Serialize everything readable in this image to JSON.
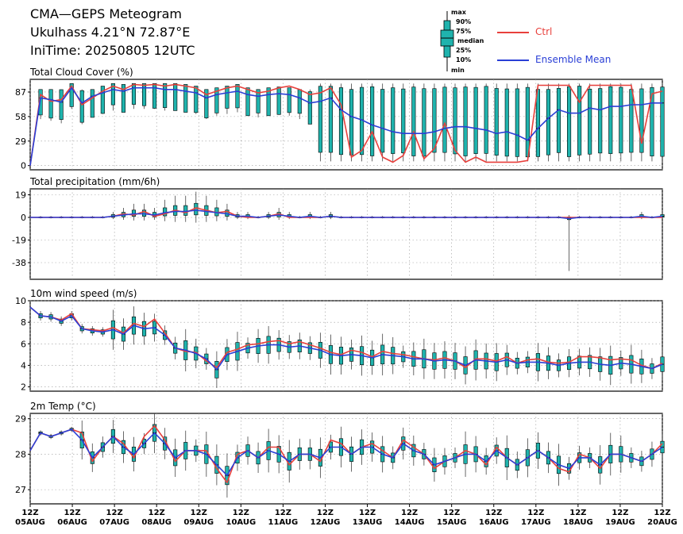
{
  "header": {
    "title": "CMA—GEPS Meteogram",
    "location": "Ukulhass 4.21°N 72.87°E",
    "init_time": "IniTime: 20250805 12UTC"
  },
  "legend": {
    "box_labels": [
      "max",
      "90%",
      "75%",
      "median",
      "25%",
      "10%",
      "min"
    ],
    "ctrl_label": "Ctrl",
    "mean_label": "Ensemble Mean",
    "ctrl_color": "#e8403c",
    "mean_color": "#2a3fd6",
    "box_color": "#1fb3ad"
  },
  "x_axis": {
    "labels_top": [
      "12Z",
      "12Z",
      "12Z",
      "12Z",
      "12Z",
      "12Z",
      "12Z",
      "12Z",
      "12Z",
      "12Z",
      "12Z",
      "12Z",
      "12Z",
      "12Z",
      "12Z",
      "12Z"
    ],
    "labels_bottom": [
      "05AUG",
      "06AUG",
      "07AUG",
      "08AUG",
      "09AUG",
      "10AUG",
      "11AUG",
      "12AUG",
      "13AUG",
      "14AUG",
      "15AUG",
      "16AUG",
      "17AUG",
      "18AUG",
      "19AUG",
      "20AUG"
    ]
  },
  "chart_data": [
    {
      "type": "line",
      "title": "Total Cloud Cover (%)",
      "ylim": [
        -5,
        102
      ],
      "yticks": [
        "0",
        "29",
        "58",
        "87"
      ],
      "ytick_values": [
        0,
        29,
        58,
        87
      ],
      "x_start": "2025-08-05 12Z",
      "step_hours": 6,
      "series": [
        {
          "name": "Ctrl",
          "values": [
            0,
            84,
            76,
            78,
            94,
            72,
            80,
            88,
            94,
            90,
            96,
            95,
            96,
            94,
            96,
            94,
            92,
            84,
            88,
            92,
            94,
            90,
            86,
            88,
            92,
            94,
            90,
            84,
            86,
            92,
            72,
            10,
            18,
            40,
            10,
            4,
            12,
            40,
            8,
            20,
            50,
            18,
            4,
            10,
            4,
            4,
            4,
            4,
            6,
            95,
            95,
            95,
            95,
            75,
            95,
            95,
            95,
            95,
            95,
            26,
            85,
            88
          ]
        },
        {
          "name": "Ensemble Mean",
          "values": [
            0,
            80,
            78,
            75,
            92,
            74,
            82,
            86,
            90,
            88,
            92,
            92,
            92,
            90,
            90,
            88,
            86,
            80,
            84,
            86,
            88,
            84,
            82,
            84,
            85,
            84,
            80,
            74,
            76,
            80,
            66,
            58,
            54,
            48,
            44,
            40,
            38,
            38,
            38,
            40,
            44,
            46,
            46,
            44,
            42,
            38,
            40,
            36,
            30,
            44,
            56,
            66,
            62,
            62,
            68,
            66,
            70,
            70,
            72,
            72,
            74,
            74
          ]
        }
      ],
      "boxes": {
        "spread": "wide"
      }
    },
    {
      "type": "line",
      "title": "Total precipitation (mm/6h)",
      "ylim": [
        -52,
        24
      ],
      "yticks": [
        "19",
        "0",
        "-19",
        "-38"
      ],
      "ytick_values": [
        19,
        0,
        -19,
        -38
      ],
      "x_start": "2025-08-05 12Z",
      "step_hours": 6,
      "series": [
        {
          "name": "Ctrl",
          "values": [
            0,
            0,
            0,
            0,
            0,
            0,
            0,
            0,
            1,
            3,
            2,
            5,
            1,
            3,
            6,
            4,
            8,
            6,
            4,
            5,
            1,
            0,
            0,
            1,
            3,
            0,
            0,
            0,
            0,
            1,
            0,
            0,
            0,
            0,
            0,
            0,
            0,
            0,
            0,
            0,
            0,
            0,
            0,
            0,
            0,
            0,
            0,
            0,
            0,
            0,
            0,
            0,
            0,
            0,
            0,
            0,
            0,
            0,
            0,
            0,
            0,
            0
          ]
        },
        {
          "name": "Ensemble Mean",
          "values": [
            0,
            0,
            0,
            0,
            0,
            0,
            0,
            0,
            1,
            2,
            3,
            3,
            2,
            4,
            5,
            5,
            6,
            5,
            4,
            3,
            1,
            1,
            0,
            1,
            2,
            1,
            0,
            1,
            0,
            1,
            0,
            0,
            0,
            0,
            0,
            0,
            0,
            0,
            0,
            0,
            0,
            0,
            0,
            0,
            0,
            0,
            0,
            0,
            0,
            0,
            0,
            0,
            -1,
            0,
            0,
            0,
            0,
            0,
            0,
            1,
            0,
            1
          ]
        }
      ],
      "boxes": {
        "spread": "precip"
      }
    },
    {
      "type": "line",
      "title": "10m wind speed (m/s)",
      "ylim": [
        1.6,
        10
      ],
      "yticks": [
        "2",
        "4",
        "6",
        "8",
        "10"
      ],
      "ytick_values": [
        2,
        4,
        6,
        8,
        10
      ],
      "x_start": "2025-08-05 12Z",
      "step_hours": 6,
      "series": [
        {
          "name": "Ctrl",
          "values": [
            9.4,
            8.6,
            8.5,
            8.2,
            8.8,
            7.4,
            7.3,
            7.2,
            7.5,
            7.0,
            7.9,
            7.6,
            8.3,
            7.0,
            5.6,
            5.3,
            5.2,
            4.4,
            3.8,
            5.2,
            5.5,
            5.9,
            6.0,
            6.2,
            6.3,
            6.0,
            6.2,
            5.9,
            5.6,
            5.2,
            5.0,
            5.4,
            5.2,
            4.8,
            5.3,
            5.1,
            5.0,
            4.8,
            4.6,
            4.5,
            4.7,
            4.4,
            3.8,
            4.6,
            4.6,
            4.4,
            4.8,
            4.2,
            4.5,
            4.6,
            4.3,
            4.2,
            4.3,
            4.8,
            4.8,
            4.7,
            4.5,
            4.6,
            4.5,
            4.0,
            3.7,
            4.2
          ]
        },
        {
          "name": "Ensemble Mean",
          "values": [
            9.4,
            8.6,
            8.5,
            8.1,
            8.6,
            7.4,
            7.2,
            7.1,
            7.3,
            6.9,
            7.7,
            7.4,
            7.5,
            6.8,
            5.6,
            5.4,
            5.1,
            4.6,
            3.6,
            5.0,
            5.3,
            5.6,
            5.8,
            5.9,
            5.9,
            5.7,
            5.8,
            5.6,
            5.4,
            5.0,
            4.9,
            5.0,
            4.9,
            4.7,
            5.0,
            4.9,
            4.8,
            4.6,
            4.6,
            4.4,
            4.5,
            4.4,
            4.0,
            4.5,
            4.4,
            4.3,
            4.5,
            4.2,
            4.3,
            4.3,
            4.2,
            4.0,
            4.2,
            4.3,
            4.3,
            4.1,
            4.0,
            4.2,
            4.1,
            3.9,
            3.7,
            4.1
          ]
        }
      ],
      "boxes": {
        "spread": "wind"
      }
    },
    {
      "type": "line",
      "title": "2m Temp (°C)",
      "ylim": [
        26.6,
        29.15
      ],
      "yticks": [
        "27",
        "28",
        "29"
      ],
      "ytick_values": [
        27,
        28,
        29
      ],
      "x_start": "2025-08-05 12Z",
      "step_hours": 6,
      "series": [
        {
          "name": "Ctrl",
          "values": [
            28.1,
            28.6,
            28.5,
            28.6,
            28.7,
            28.6,
            27.8,
            28.2,
            28.5,
            28.3,
            27.9,
            28.5,
            28.8,
            28.4,
            27.8,
            28.1,
            28.1,
            28.1,
            27.6,
            27.2,
            28.0,
            28.1,
            27.9,
            28.2,
            28.2,
            27.7,
            28.0,
            28.0,
            27.8,
            28.4,
            28.3,
            28.0,
            28.2,
            28.3,
            28.1,
            27.9,
            28.4,
            28.2,
            28.0,
            27.6,
            27.8,
            27.9,
            28.1,
            28.0,
            27.7,
            28.2,
            27.9,
            27.7,
            27.9,
            28.1,
            27.9,
            27.6,
            27.5,
            28.0,
            27.9,
            27.6,
            28.0,
            28.0,
            27.9,
            27.8,
            28.0,
            28.3
          ]
        },
        {
          "name": "Ensemble Mean",
          "values": [
            28.1,
            28.6,
            28.5,
            28.6,
            28.7,
            28.4,
            27.9,
            28.2,
            28.5,
            28.2,
            28.0,
            28.3,
            28.6,
            28.3,
            27.9,
            28.1,
            28.1,
            28.0,
            27.7,
            27.4,
            27.9,
            28.1,
            27.9,
            28.1,
            28.0,
            27.8,
            28.0,
            28.0,
            27.9,
            28.2,
            28.2,
            28.0,
            28.2,
            28.2,
            28.0,
            27.9,
            28.3,
            28.1,
            28.0,
            27.7,
            27.8,
            27.9,
            28.0,
            28.0,
            27.8,
            28.1,
            27.9,
            27.7,
            27.9,
            28.1,
            27.9,
            27.7,
            27.6,
            27.9,
            27.9,
            27.7,
            28.0,
            28.0,
            27.9,
            27.8,
            28.0,
            28.2
          ]
        }
      ],
      "boxes": {
        "spread": "temp"
      }
    }
  ]
}
